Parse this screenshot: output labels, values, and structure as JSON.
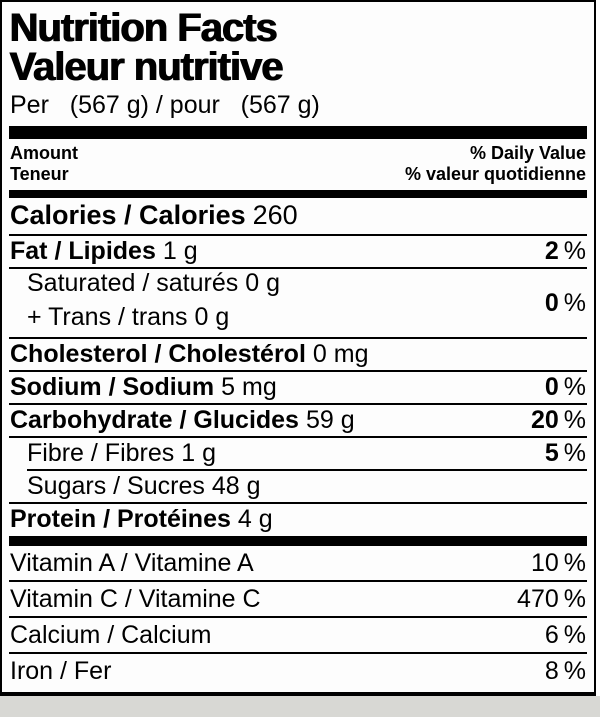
{
  "colors": {
    "ink": "#000000",
    "paper": "#fdfdfd",
    "bottom_strip": "#d8d8d4"
  },
  "label": {
    "title_en": "Nutrition Facts",
    "title_fr": "Valeur nutritive",
    "serving_line": "Per   (567 g) / pour   (567 g)",
    "percent_sign": "%",
    "header": {
      "amount_en": "Amount",
      "amount_fr": "Teneur",
      "daily_value_en": "% Daily Value",
      "daily_value_fr": "% valeur quotidienne"
    },
    "calories": {
      "label": "Calories / Calories",
      "value": "260"
    },
    "nutrients": [
      {
        "label": "Fat / Lipides",
        "value": "1 g",
        "dv": "2"
      },
      {
        "line1_label": "Saturated / saturés",
        "line1_value": "0 g",
        "line2_label": "+ Trans / trans",
        "line2_value": "0 g",
        "dv": "0"
      },
      {
        "label": "Cholesterol / Cholestérol",
        "value": "0 mg"
      },
      {
        "label": "Sodium / Sodium",
        "value": "5 mg",
        "dv": "0"
      },
      {
        "label": "Carbohydrate / Glucides",
        "value": "59 g",
        "dv": "20"
      },
      {
        "label": "Fibre / Fibres",
        "value": "1 g",
        "dv": "5"
      },
      {
        "label": "Sugars / Sucres",
        "value": "48 g"
      },
      {
        "label": "Protein / Protéines",
        "value": "4 g"
      }
    ],
    "micronutrients": [
      {
        "label": "Vitamin A / Vitamine A",
        "dv": "10"
      },
      {
        "label": "Vitamin C / Vitamine C",
        "dv": "470"
      },
      {
        "label": "Calcium / Calcium",
        "dv": "6"
      },
      {
        "label": "Iron / Fer",
        "dv": "8"
      }
    ]
  }
}
